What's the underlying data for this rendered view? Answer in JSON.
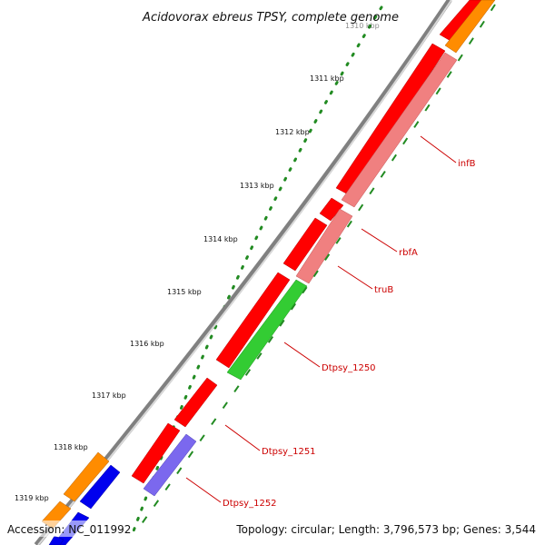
{
  "title": "Acidovorax ebreus TPSY, complete genome",
  "footer": {
    "accession": "Accession: NC_011992",
    "summary": "Topology: circular; Length: 3,796,573 bp; Genes: 3,544"
  },
  "tick_labels": [
    "1310 kbp",
    "1311 kbp",
    "1312 kbp",
    "1313 kbp",
    "1314 kbp",
    "1315 kbp",
    "1316 kbp",
    "1317 kbp",
    "1318 kbp",
    "1319 kbp"
  ],
  "gene_labels": [
    "infB",
    "rbfA",
    "truB",
    "Dtpsy_1250",
    "Dtpsy_1251",
    "Dtpsy_1252"
  ],
  "colors": {
    "cds": "#ff0000",
    "cds_light": "#f08080",
    "cds_green": "#33cc33",
    "cds_purple": "#7b68ee",
    "orange": "#ff8c00",
    "blue": "#0000ee",
    "backbone": "#808080",
    "tick_dots": "#228b22",
    "label_text": "#cc0000"
  }
}
